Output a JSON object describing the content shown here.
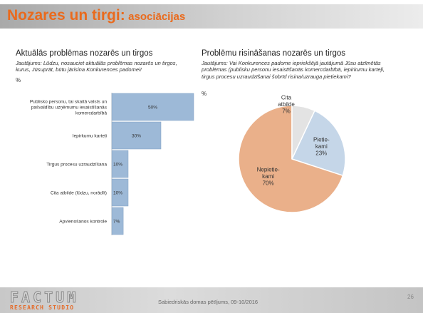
{
  "slide": {
    "title_main": "Nozares un tirgi:",
    "title_sub": "asociācijas",
    "footer_text": "Sabiedriskās domas pētījums, 09-10/2016",
    "page_number": "26",
    "logo_main": "FACTUM",
    "logo_sub": "RESEARCH STUDIO"
  },
  "left": {
    "title": "Aktuālās problēmas nozarēs un tirgos",
    "question": "Jautājums: Lūdzu, nosauciet aktuālās problēmas nozarēs un tirgos, kurus, Jūsuprāt, būtu jārisina Konkurences padomei!",
    "unit": "%"
  },
  "right": {
    "title": "Problēmu risināšanas nozarēs un tirgos",
    "question": "Jautājums: Vai Konkurences padome iepriekšējā jautājumā Jūsu atzīmētās problēmas (publisku personu iesaistīšanās komercdarbībā, iepirkumu karteļi, tirgus procesu uzraudzīšanai šobrīd risina/uzrauga pietiekami?",
    "unit": "%"
  },
  "colors": {
    "bar": "#9db9d7",
    "bar_stroke": "#7f9fc2",
    "pie_orange": "#eab08a",
    "pie_blue": "#c5d6e8",
    "pie_gray": "#e3e3e3",
    "title_orange": "#ea6a1c"
  },
  "chart_data": [
    {
      "type": "bar",
      "orientation": "horizontal",
      "categories": [
        "Publisko personu, tai skaitā valsts un pašvaldību uzņēmumu iesaistīšanās komercdarbībā",
        "Iepirkumu karteļi",
        "Tirgus procesu uzraudzīšana",
        "Cita atbilde (lūdzu, norādīt)",
        "Apvienošanos kontrole"
      ],
      "values": [
        50,
        30,
        10,
        10,
        7
      ],
      "value_labels": [
        "50%",
        "30%",
        "10%",
        "10%",
        "7%"
      ],
      "xlim": [
        0,
        50
      ]
    },
    {
      "type": "pie",
      "labels": [
        "Nepietie-kami",
        "Pietie-kami",
        "Cita atbilde"
      ],
      "values": [
        70,
        23,
        7
      ],
      "value_labels": [
        "70%",
        "23%",
        "7%"
      ]
    }
  ]
}
